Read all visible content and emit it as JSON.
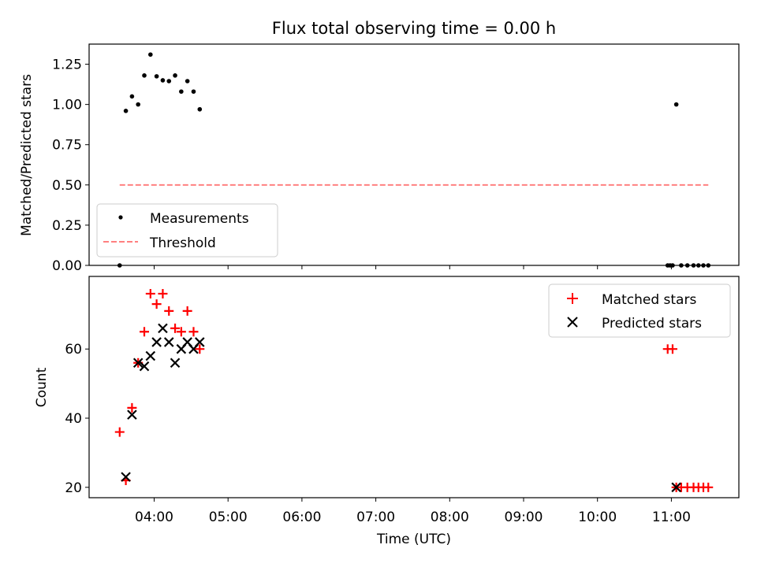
{
  "chart_data": [
    {
      "type": "scatter",
      "title": "Flux total observing time = 0.00 h",
      "ylabel": "Matched/Predicted stars",
      "xlabel": "",
      "ylim": [
        0,
        1.375
      ],
      "yticks": [
        "0.00",
        "0.25",
        "0.50",
        "0.75",
        "1.00",
        "1.25"
      ],
      "ytick_values": [
        0,
        0.25,
        0.5,
        0.75,
        1.0,
        1.25
      ],
      "legend_position": "lower-left",
      "series": [
        {
          "name": "Measurements",
          "marker": "dot",
          "color": "#000000",
          "x": [
            "03:32",
            "03:37",
            "03:42",
            "03:47",
            "03:52",
            "03:57",
            "04:02",
            "04:07",
            "04:12",
            "04:17",
            "04:22",
            "04:27",
            "04:32",
            "04:37",
            "10:57",
            "10:59",
            "11:01",
            "11:04",
            "11:08",
            "11:13",
            "11:18",
            "11:22",
            "11:26",
            "11:30"
          ],
          "y": [
            0.0,
            0.96,
            1.05,
            1.0,
            1.18,
            1.31,
            1.175,
            1.15,
            1.145,
            1.18,
            1.08,
            1.145,
            1.08,
            0.97,
            0.0,
            0.0,
            0.0,
            1.0,
            0.0,
            0.0,
            0.0,
            0.0,
            0.0,
            0.0
          ]
        },
        {
          "name": "Threshold",
          "line_style": "dashed",
          "color": "#ff8080",
          "x": [
            "03:32",
            "11:30"
          ],
          "y": [
            0.5,
            0.5
          ]
        }
      ]
    },
    {
      "type": "scatter",
      "title": "",
      "ylabel": "Count",
      "xlabel": "Time (UTC)",
      "ylim": [
        17,
        81
      ],
      "yticks": [
        "20",
        "40",
        "60"
      ],
      "ytick_values": [
        20,
        40,
        60
      ],
      "xticks": [
        "04:00",
        "05:00",
        "06:00",
        "07:00",
        "08:00",
        "09:00",
        "10:00",
        "11:00"
      ],
      "legend_position": "upper-right",
      "series": [
        {
          "name": "Matched stars",
          "marker": "plus",
          "color": "#ff0000",
          "x": [
            "03:32",
            "03:37",
            "03:42",
            "03:47",
            "03:52",
            "03:57",
            "04:02",
            "04:07",
            "04:12",
            "04:17",
            "04:22",
            "04:27",
            "04:32",
            "04:37",
            "10:57",
            "11:01",
            "11:04",
            "11:08",
            "11:13",
            "11:18",
            "11:22",
            "11:26",
            "11:30"
          ],
          "y": [
            36,
            22,
            43,
            56,
            65,
            76,
            73,
            76,
            71,
            66,
            65,
            71,
            65,
            60,
            60,
            60,
            20,
            20,
            20,
            20,
            20,
            20,
            20
          ]
        },
        {
          "name": "Predicted stars",
          "marker": "x",
          "color": "#000000",
          "x": [
            "03:37",
            "03:42",
            "03:47",
            "03:52",
            "03:57",
            "04:02",
            "04:07",
            "04:12",
            "04:17",
            "04:22",
            "04:27",
            "04:32",
            "04:37",
            "11:04"
          ],
          "y": [
            23,
            41,
            56,
            55,
            58,
            62,
            66,
            62,
            56,
            60,
            62,
            60,
            62,
            20
          ]
        }
      ]
    }
  ]
}
